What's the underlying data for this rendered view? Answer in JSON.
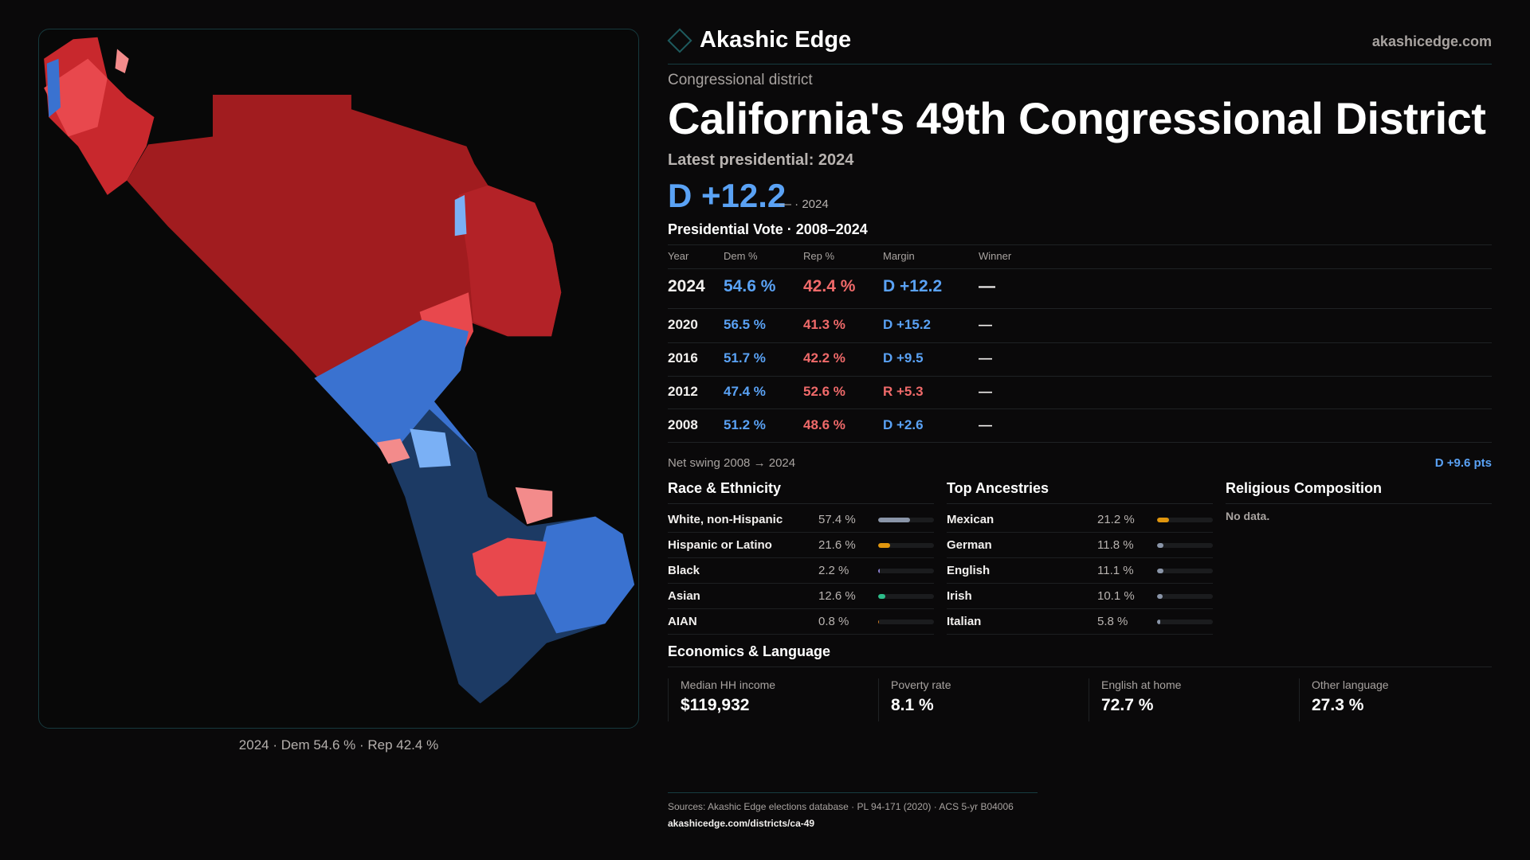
{
  "brand": {
    "name": "Akashic Edge",
    "site": "akashicedge.com"
  },
  "kicker": "Congressional district",
  "title": "California's 49th Congressional District",
  "latest": "Latest presidential: 2024",
  "headline_margin": "D +12.2",
  "headline_sub": "— · 2024",
  "vote": {
    "heading": "Presidential Vote · 2008–2024",
    "columns": [
      "Year",
      "Dem %",
      "Rep %",
      "Margin",
      "Winner"
    ],
    "rows": [
      {
        "year": "2024",
        "dem": "54.6 %",
        "rep": "42.4 %",
        "margin": "D +12.2",
        "party": "D",
        "winner": "—"
      },
      {
        "year": "2020",
        "dem": "56.5 %",
        "rep": "41.3 %",
        "margin": "D +15.2",
        "party": "D",
        "winner": "—"
      },
      {
        "year": "2016",
        "dem": "51.7 %",
        "rep": "42.2 %",
        "margin": "D +9.5",
        "party": "D",
        "winner": "—"
      },
      {
        "year": "2012",
        "dem": "47.4 %",
        "rep": "52.6 %",
        "margin": "R +5.3",
        "party": "R",
        "winner": "—"
      },
      {
        "year": "2008",
        "dem": "51.2 %",
        "rep": "48.6 %",
        "margin": "D +2.6",
        "party": "D",
        "winner": "—"
      }
    ],
    "net_swing_label": "Net swing 2008 → 2024",
    "net_swing_value": "D +9.6 pts"
  },
  "race": {
    "heading": "Race & Ethnicity",
    "rows": [
      {
        "label": "White, non-Hispanic",
        "pct": "57.4 %",
        "value": 57.4,
        "color": "#8a95a8"
      },
      {
        "label": "Hispanic or Latino",
        "pct": "21.6 %",
        "value": 21.6,
        "color": "#e0960e"
      },
      {
        "label": "Black",
        "pct": "2.2 %",
        "value": 2.2,
        "color": "#8a7fd0"
      },
      {
        "label": "Asian",
        "pct": "12.6 %",
        "value": 12.6,
        "color": "#2dbd8a"
      },
      {
        "label": "AIAN",
        "pct": "0.8 %",
        "value": 0.8,
        "color": "#d07a20"
      }
    ]
  },
  "ancestry": {
    "heading": "Top Ancestries",
    "rows": [
      {
        "label": "Mexican",
        "pct": "21.2 %",
        "value": 21.2,
        "color": "#e0960e"
      },
      {
        "label": "German",
        "pct": "11.8 %",
        "value": 11.8,
        "color": "#8a95a8"
      },
      {
        "label": "English",
        "pct": "11.1 %",
        "value": 11.1,
        "color": "#8a95a8"
      },
      {
        "label": "Irish",
        "pct": "10.1 %",
        "value": 10.1,
        "color": "#8a95a8"
      },
      {
        "label": "Italian",
        "pct": "5.8 %",
        "value": 5.8,
        "color": "#8a95a8"
      }
    ]
  },
  "religion": {
    "heading": "Religious Composition",
    "empty": "No data."
  },
  "economics": {
    "heading": "Economics & Language",
    "cards": [
      {
        "label": "Median HH income",
        "value": "$119,932"
      },
      {
        "label": "Poverty rate",
        "value": "8.1 %"
      },
      {
        "label": "English at home",
        "value": "72.7 %"
      },
      {
        "label": "Other language",
        "value": "27.3 %"
      }
    ]
  },
  "map": {
    "caption": "2024 · Dem 54.6 % · Rep 42.4 %",
    "colors": {
      "strong_rep": "#a11c1f",
      "lean_rep": "#e8484d",
      "tilt_rep": "#f38b8b",
      "tilt_dem": "#7ab0f5",
      "lean_dem": "#3a72d0",
      "strong_dem": "#1c3a64"
    }
  },
  "sources": {
    "line": "Sources: Akashic Edge elections database · PL 94-171 (2020) · ACS 5-yr B04006",
    "url": "akashicedge.com/districts/ca-49"
  },
  "colors": {
    "dem": "#5aa2f5",
    "rep": "#f06a6a",
    "accent": "#163c40",
    "bg": "#0a090a"
  }
}
